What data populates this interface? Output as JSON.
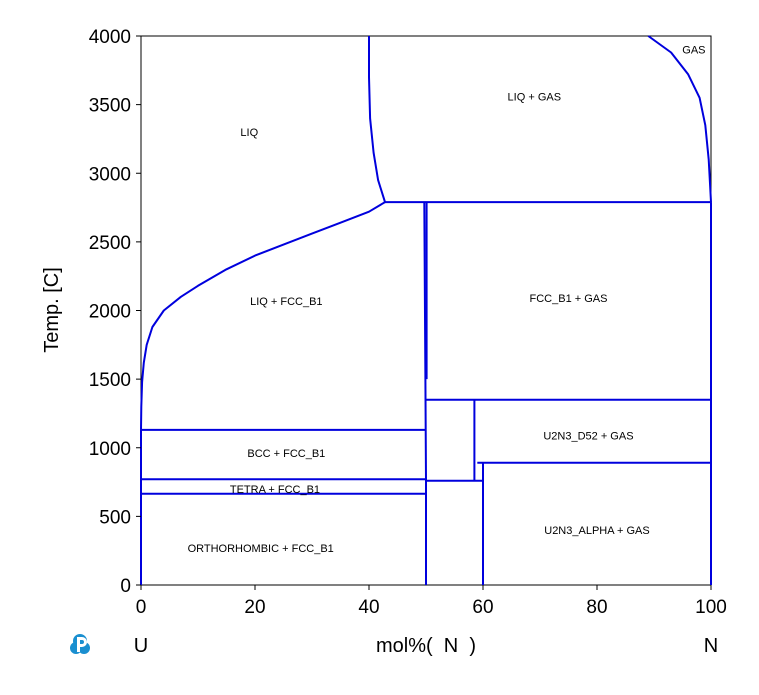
{
  "chart_data": {
    "type": "line",
    "xlabel": "mol%(  N  )",
    "ylabel": "Temp.  [C]",
    "xlim": [
      0,
      100
    ],
    "ylim": [
      0,
      4000
    ],
    "x_ticks": [
      0,
      20,
      40,
      60,
      80,
      100
    ],
    "y_ticks": [
      0,
      500,
      1000,
      1500,
      2000,
      2500,
      3000,
      3500,
      4000
    ],
    "x_tick_labels": [
      "0",
      "20",
      "40",
      "60",
      "80",
      "100"
    ],
    "y_tick_labels": [
      "0",
      "500",
      "1000",
      "1500",
      "2000",
      "2500",
      "3000",
      "3500",
      "4000"
    ],
    "left_component": "U",
    "right_component": "N",
    "logo_icon": "thermo-calc-p-logo-icon",
    "line_color": "#0000dd",
    "series": [
      {
        "x": [
          0,
          0.05,
          0.2,
          0.5,
          1,
          2,
          4,
          7,
          10,
          15,
          20,
          25,
          30,
          35,
          40,
          42.8
        ],
        "y": [
          1130,
          1300,
          1480,
          1620,
          1750,
          1880,
          2000,
          2100,
          2180,
          2300,
          2400,
          2480,
          2560,
          2640,
          2720,
          2790
        ]
      },
      {
        "x": [
          40,
          40,
          40.2,
          40.8,
          41.6,
          42.8
        ],
        "y": [
          4000,
          3700,
          3400,
          3150,
          2950,
          2790
        ]
      },
      {
        "x": [
          42.8,
          100
        ],
        "y": [
          2790,
          2790
        ]
      },
      {
        "x": [
          89,
          93,
          96,
          98,
          99,
          99.6,
          100
        ],
        "y": [
          4000,
          3880,
          3720,
          3550,
          3350,
          3100,
          2790
        ]
      },
      {
        "x": [
          0,
          0
        ],
        "y": [
          0,
          1130
        ]
      },
      {
        "x": [
          100,
          100
        ],
        "y": [
          0,
          2790
        ]
      },
      {
        "x": [
          49.7,
          49.9,
          50,
          50
        ],
        "y": [
          2790,
          1500,
          760,
          0
        ]
      },
      {
        "x": [
          50.1,
          50.1
        ],
        "y": [
          2790,
          1500
        ]
      },
      {
        "x": [
          0,
          50
        ],
        "y": [
          1130,
          1130
        ]
      },
      {
        "x": [
          0,
          50
        ],
        "y": [
          770,
          770
        ]
      },
      {
        "x": [
          0,
          50
        ],
        "y": [
          665,
          665
        ]
      },
      {
        "x": [
          50,
          100
        ],
        "y": [
          1350,
          1350
        ]
      },
      {
        "x": [
          58.5,
          58.5
        ],
        "y": [
          1350,
          760
        ]
      },
      {
        "x": [
          50,
          60
        ],
        "y": [
          760,
          760
        ]
      },
      {
        "x": [
          59,
          100
        ],
        "y": [
          890,
          890
        ]
      },
      {
        "x": [
          60,
          60
        ],
        "y": [
          890,
          0
        ]
      }
    ],
    "region_labels": [
      {
        "text": "LIQ",
        "x": 19,
        "y": 3300
      },
      {
        "text": "LIQ + GAS",
        "x": 69,
        "y": 3560
      },
      {
        "text": "GAS",
        "x": 97,
        "y": 3900
      },
      {
        "text": "LIQ + FCC_B1",
        "x": 25.5,
        "y": 2070
      },
      {
        "text": "FCC_B1 + GAS",
        "x": 75,
        "y": 2090
      },
      {
        "text": "U2N3_D52 + GAS",
        "x": 78.5,
        "y": 1090
      },
      {
        "text": "BCC + FCC_B1",
        "x": 25.5,
        "y": 960
      },
      {
        "text": "TETRA + FCC_B1",
        "x": 23.5,
        "y": 700
      },
      {
        "text": "U2N3_ALPHA + GAS",
        "x": 80,
        "y": 400
      },
      {
        "text": "ORTHORHOMBIC + FCC_B1",
        "x": 21,
        "y": 270
      }
    ]
  }
}
